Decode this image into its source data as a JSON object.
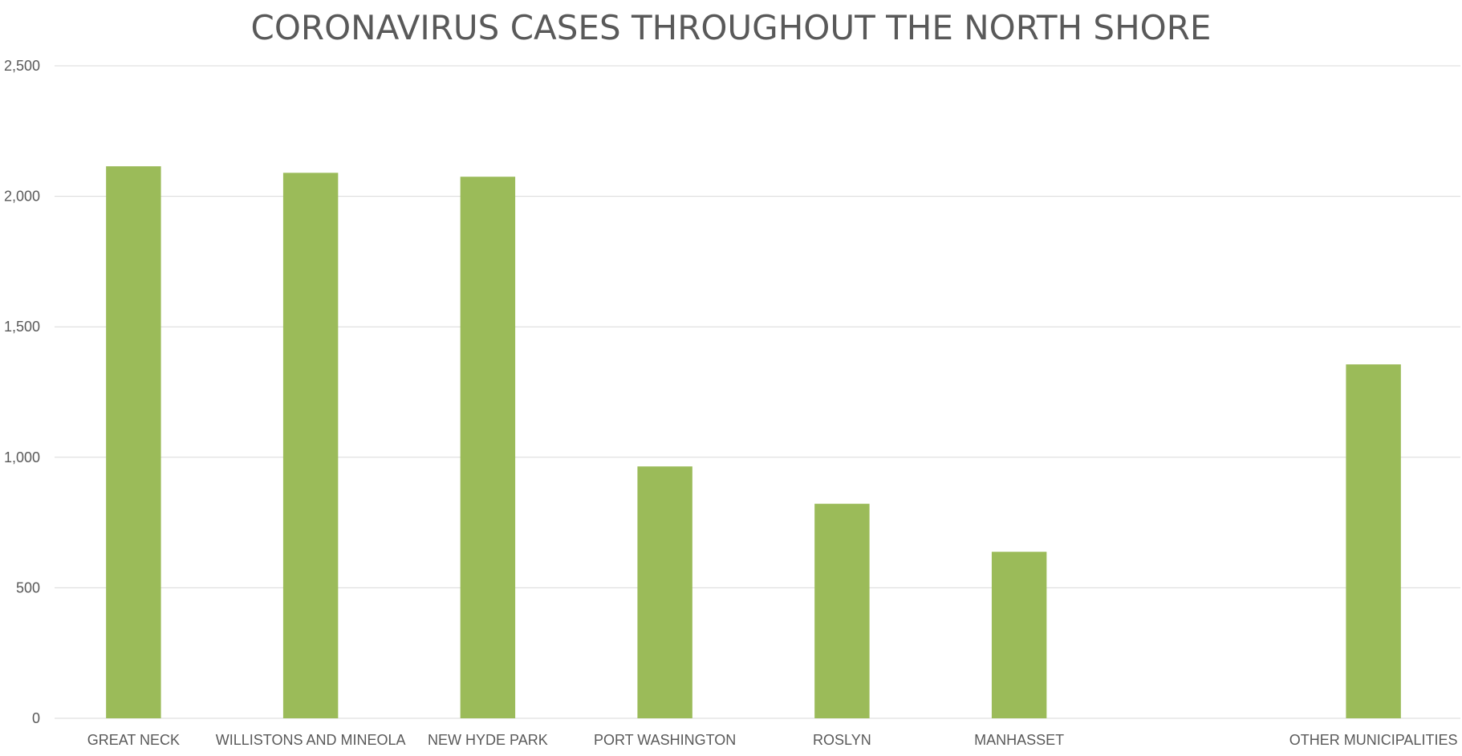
{
  "chart_data": {
    "type": "bar",
    "title": "CORONAVIRUS CASES THROUGHOUT THE NORTH SHORE",
    "xlabel": "",
    "ylabel": "",
    "categories": [
      "GREAT NECK",
      "WILLISTONS AND MINEOLA",
      "NEW HYDE PARK",
      "PORT WASHINGTON",
      "ROSLYN",
      "MANHASSET",
      "",
      "OTHER MUNICIPALITIES"
    ],
    "values": [
      2115,
      2090,
      2075,
      965,
      822,
      638,
      null,
      1356
    ],
    "ylim": [
      0,
      2500
    ],
    "yticks": [
      0,
      500,
      1000,
      1500,
      2000,
      2500
    ],
    "ytick_labels": [
      "0",
      "500",
      "1,000",
      "1,500",
      "2,000",
      "2,500"
    ],
    "grid": true,
    "legend": "none",
    "bar_color": "#9bbb59"
  }
}
